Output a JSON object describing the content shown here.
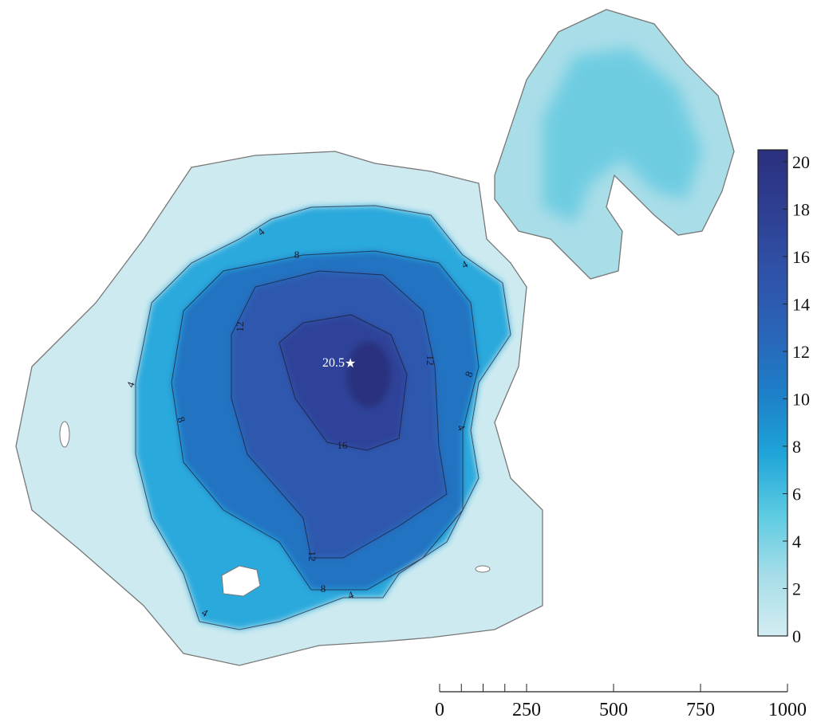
{
  "colorbar": {
    "lim": [
      0,
      20.5
    ],
    "ticks": [
      0,
      2,
      4,
      6,
      8,
      10,
      12,
      14,
      16,
      18,
      20
    ],
    "colormap": [
      "#d3edf2",
      "#a6dde8",
      "#5ccbe2",
      "#1fa4d8",
      "#1d7fc8",
      "#2a64b8",
      "#2f52a8",
      "#2e3f92",
      "#2b2f7e"
    ]
  },
  "max_depth": 20.5,
  "contour_labels": [
    4,
    8,
    4,
    12,
    12,
    8,
    4,
    8,
    4,
    16,
    12,
    8,
    4,
    4
  ],
  "scale_bar": {
    "lim": [
      0,
      1000
    ],
    "ticks": [
      0,
      250,
      500,
      750,
      1000
    ],
    "minor_ticks": [
      62.5,
      125,
      187.5
    ]
  }
}
